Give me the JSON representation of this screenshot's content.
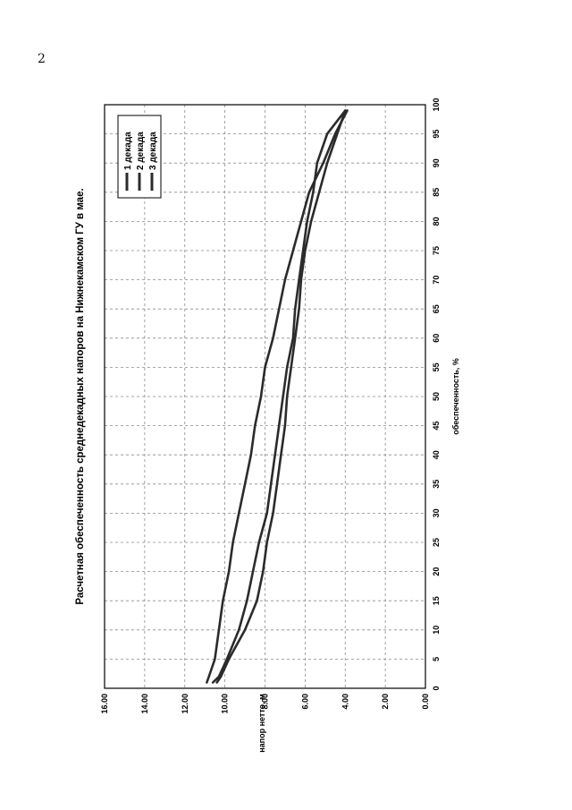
{
  "page_number": "2",
  "chart_data": {
    "type": "line",
    "title": "Расчетная обеспеченность среднедекадных напоров на Нижнекамском ГУ в мае.",
    "xlabel": "обеспеченность, %",
    "ylabel": "напор нетто, м",
    "xlim": [
      0,
      100
    ],
    "ylim": [
      0,
      16
    ],
    "x_ticks": [
      "0",
      "5",
      "10",
      "15",
      "20",
      "25",
      "30",
      "35",
      "40",
      "45",
      "50",
      "55",
      "60",
      "65",
      "70",
      "75",
      "80",
      "85",
      "90",
      "95",
      "100"
    ],
    "y_ticks": [
      "0.00",
      "2.00",
      "4.00",
      "6.00",
      "8.00",
      "10.00",
      "12.00",
      "14.00",
      "16.00"
    ],
    "grid": true,
    "legend_position": "top-right",
    "orientation": "rotated 90° counter-clockwise on page",
    "line_color": "#2b2b2b",
    "series": [
      {
        "name": "1 декада",
        "x": [
          1,
          2,
          5,
          10,
          15,
          20,
          25,
          30,
          35,
          40,
          45,
          50,
          55,
          60,
          65,
          70,
          75,
          80,
          85,
          90,
          95,
          99
        ],
        "y": [
          10.9,
          10.8,
          10.5,
          10.3,
          10.1,
          9.8,
          9.6,
          9.3,
          9.0,
          8.7,
          8.5,
          8.2,
          8.0,
          7.6,
          7.3,
          7.0,
          6.6,
          6.2,
          5.8,
          5.1,
          4.5,
          3.9
        ]
      },
      {
        "name": "2 декада",
        "x": [
          1,
          2,
          5,
          10,
          15,
          20,
          25,
          30,
          35,
          40,
          45,
          50,
          55,
          60,
          65,
          70,
          75,
          80,
          85,
          90,
          95,
          99
        ],
        "y": [
          10.6,
          10.3,
          9.9,
          9.3,
          8.9,
          8.6,
          8.3,
          7.9,
          7.7,
          7.5,
          7.3,
          7.1,
          6.9,
          6.6,
          6.5,
          6.3,
          6.1,
          5.9,
          5.6,
          5.4,
          4.9,
          4.0
        ]
      },
      {
        "name": "3 декада",
        "x": [
          1,
          2,
          5,
          10,
          15,
          20,
          25,
          30,
          35,
          40,
          45,
          50,
          55,
          60,
          65,
          70,
          75,
          80,
          85,
          90,
          95,
          99
        ],
        "y": [
          10.4,
          10.2,
          9.8,
          9.0,
          8.4,
          8.1,
          7.9,
          7.6,
          7.4,
          7.2,
          7.0,
          6.9,
          6.7,
          6.5,
          6.3,
          6.2,
          6.0,
          5.7,
          5.3,
          4.9,
          4.4,
          4.0
        ]
      }
    ]
  }
}
